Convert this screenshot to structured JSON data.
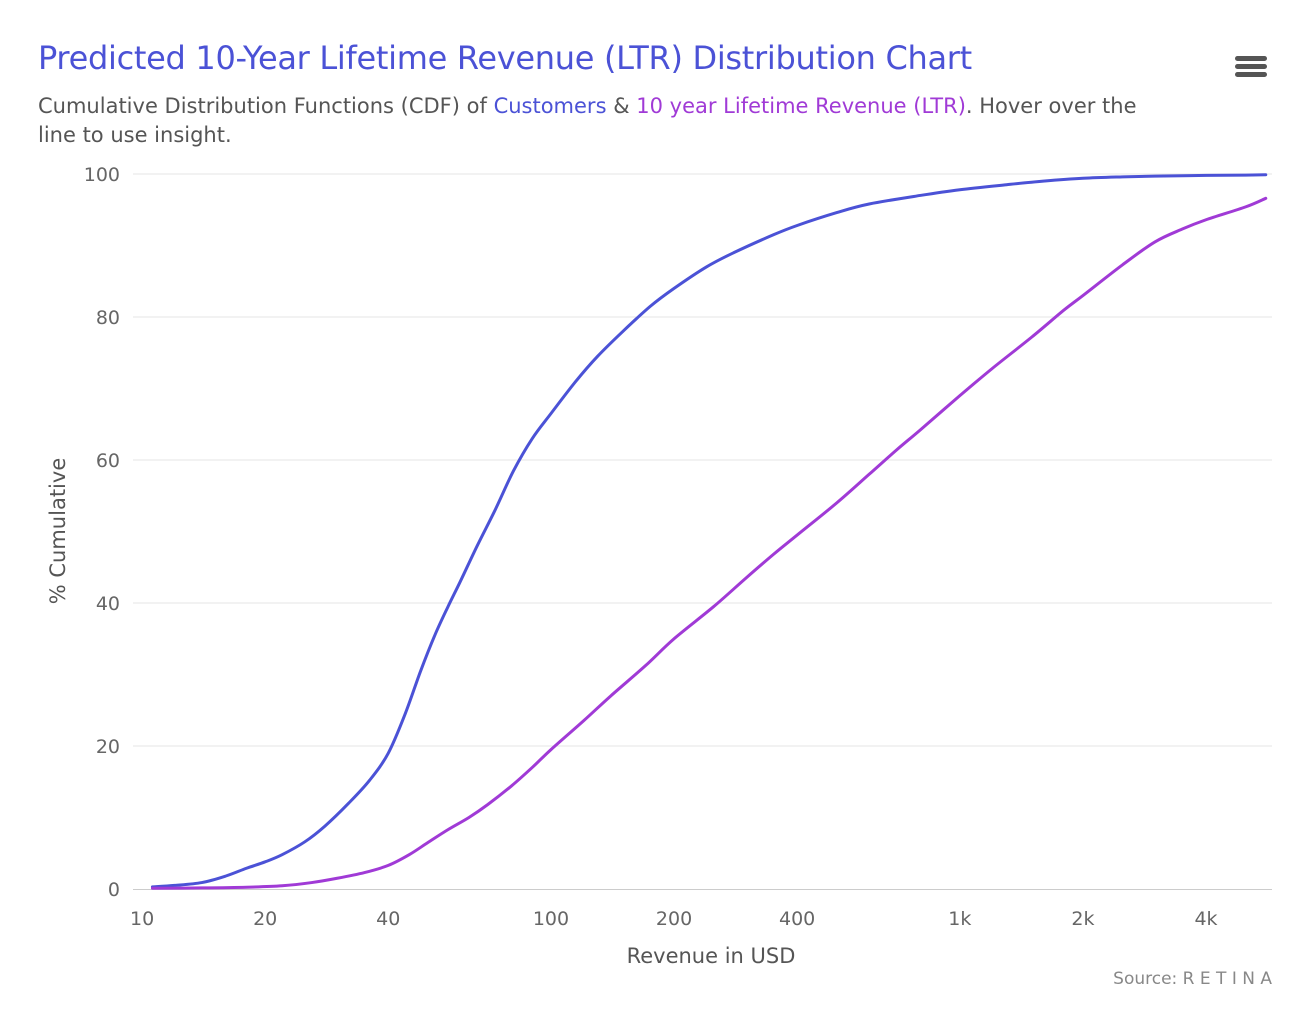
{
  "chart_data": {
    "type": "line",
    "title": "Predicted 10-Year Lifetime Revenue (LTR) Distribution Chart",
    "subtitle": {
      "before": "Cumulative Distribution Functions (CDF) of ",
      "customers": "Customers",
      "middle": " & ",
      "ltr": "10 year Lifetime Revenue (LTR)",
      "after": ". Hover over the line to use insight."
    },
    "xlabel": "Revenue in USD",
    "ylabel": "% Cumulative",
    "x_scale": "log",
    "xlim": [
      9.5,
      5800
    ],
    "ylim": [
      0,
      100
    ],
    "x_ticks": [
      {
        "value": 10,
        "label": "10"
      },
      {
        "value": 20,
        "label": "20"
      },
      {
        "value": 40,
        "label": "40"
      },
      {
        "value": 100,
        "label": "100"
      },
      {
        "value": 200,
        "label": "200"
      },
      {
        "value": 400,
        "label": "400"
      },
      {
        "value": 1000,
        "label": "1k"
      },
      {
        "value": 2000,
        "label": "2k"
      },
      {
        "value": 4000,
        "label": "4k"
      }
    ],
    "y_ticks": [
      0,
      20,
      40,
      60,
      80,
      100
    ],
    "grid": {
      "x": false,
      "y": true
    },
    "series": [
      {
        "name": "Customers",
        "color": "#4b52d6",
        "x": [
          10.6,
          12,
          14,
          16,
          18,
          20,
          22,
          25,
          28,
          32,
          36,
          40,
          44,
          48,
          52,
          56,
          60,
          66,
          73,
          81,
          90,
          100,
          115,
          130,
          150,
          175,
          200,
          240,
          280,
          350,
          400,
          500,
          600,
          800,
          1000,
          1300,
          1600,
          2000,
          2500,
          3000,
          3500,
          4000,
          5000,
          5600
        ],
        "y": [
          0.3,
          0.5,
          0.9,
          1.8,
          2.9,
          3.8,
          4.8,
          6.6,
          8.8,
          12.0,
          15.2,
          19.0,
          24.5,
          30.5,
          35.5,
          39.5,
          43.0,
          48.0,
          53.0,
          58.5,
          63.0,
          66.5,
          71.0,
          74.5,
          78.0,
          81.5,
          84.0,
          87.0,
          89.0,
          91.5,
          92.8,
          94.6,
          95.8,
          97.0,
          97.8,
          98.5,
          99.0,
          99.4,
          99.6,
          99.7,
          99.75,
          99.8,
          99.85,
          99.9
        ]
      },
      {
        "name": "10 year Lifetime Revenue (LTR)",
        "color": "#a03ad6",
        "x": [
          10.6,
          14,
          18,
          22,
          26,
          30,
          35,
          40,
          45,
          50,
          56,
          63,
          70,
          80,
          90,
          100,
          120,
          140,
          170,
          200,
          250,
          300,
          350,
          400,
          500,
          600,
          700,
          800,
          1000,
          1200,
          1500,
          1800,
          2000,
          2500,
          3000,
          3500,
          4000,
          5000,
          5600
        ],
        "y": [
          0.1,
          0.15,
          0.25,
          0.45,
          0.9,
          1.5,
          2.3,
          3.3,
          4.8,
          6.5,
          8.3,
          10.0,
          11.8,
          14.4,
          17.0,
          19.5,
          23.5,
          27.0,
          31.2,
          35.0,
          39.5,
          43.5,
          46.8,
          49.5,
          54.0,
          58.0,
          61.4,
          64.2,
          69.0,
          72.8,
          77.2,
          81.0,
          83.0,
          87.3,
          90.5,
          92.3,
          93.6,
          95.4,
          96.6
        ]
      }
    ]
  },
  "toolbar": {
    "menu_icon": "hamburger-menu-icon"
  },
  "credits": {
    "text": "Source: R E T I N A"
  }
}
